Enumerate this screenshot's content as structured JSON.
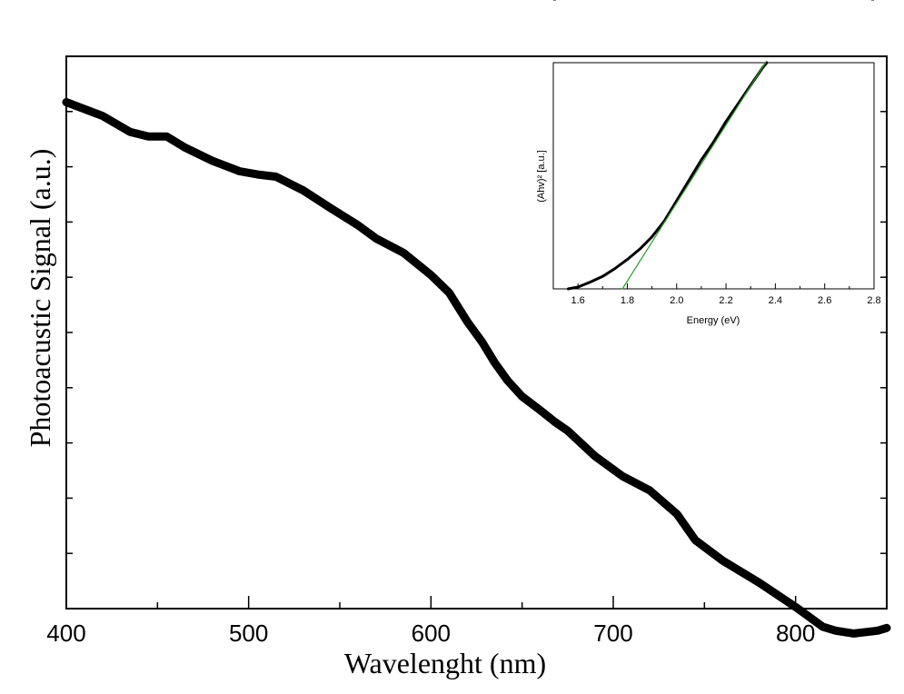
{
  "chart_data": [
    {
      "type": "line",
      "xlabel": "Wavelenght (nm)",
      "ylabel": "Photoacustic Signal (a.u.)",
      "xlim": [
        400,
        850
      ],
      "ylim": [
        0,
        1
      ],
      "xticks": [
        "400",
        "500",
        "600",
        "700",
        "800"
      ],
      "show_y_tick_labels": false,
      "grid": false,
      "series": [
        {
          "color": "#000000",
          "x": [
            400,
            420,
            435,
            445,
            455,
            465,
            480,
            495,
            505,
            515,
            530,
            545,
            560,
            570,
            585,
            600,
            610,
            620,
            628,
            635,
            642,
            650,
            660,
            668,
            675,
            690,
            705,
            720,
            735,
            745,
            760,
            780,
            800,
            815,
            822,
            832,
            845,
            850
          ],
          "y": [
            0.917,
            0.892,
            0.863,
            0.855,
            0.855,
            0.835,
            0.811,
            0.792,
            0.786,
            0.782,
            0.757,
            0.725,
            0.694,
            0.67,
            0.644,
            0.604,
            0.572,
            0.519,
            0.483,
            0.445,
            0.413,
            0.384,
            0.359,
            0.338,
            0.322,
            0.276,
            0.24,
            0.214,
            0.171,
            0.124,
            0.087,
            0.047,
            0.003,
            -0.033,
            -0.04,
            -0.045,
            -0.04,
            -0.035
          ]
        }
      ]
    },
    {
      "type": "line",
      "xlabel": "Energy (eV)",
      "ylabel": "(Ahv)² [a.u.]",
      "xlim": [
        1.5,
        2.8
      ],
      "ylim": [
        0,
        1
      ],
      "xticks": [
        "1.6",
        "1.8",
        "2.0",
        "2.2",
        "2.4",
        "2.6",
        "2.8"
      ],
      "show_y_tick_labels": false,
      "grid": false,
      "series": [
        {
          "color": "#000000",
          "x": [
            1.56,
            1.6,
            1.65,
            1.7,
            1.75,
            1.8,
            1.85,
            1.9,
            1.95,
            2.0,
            2.05,
            2.1,
            2.15,
            2.2,
            2.25,
            2.3,
            2.35,
            2.365
          ],
          "y": [
            0.0,
            0.008,
            0.03,
            0.055,
            0.09,
            0.13,
            0.175,
            0.23,
            0.3,
            0.39,
            0.48,
            0.57,
            0.65,
            0.74,
            0.82,
            0.9,
            0.98,
            1.0
          ]
        },
        {
          "color": "#2ca02c",
          "x": [
            1.78,
            2.36
          ],
          "y": [
            0.0,
            1.0
          ]
        }
      ]
    }
  ]
}
